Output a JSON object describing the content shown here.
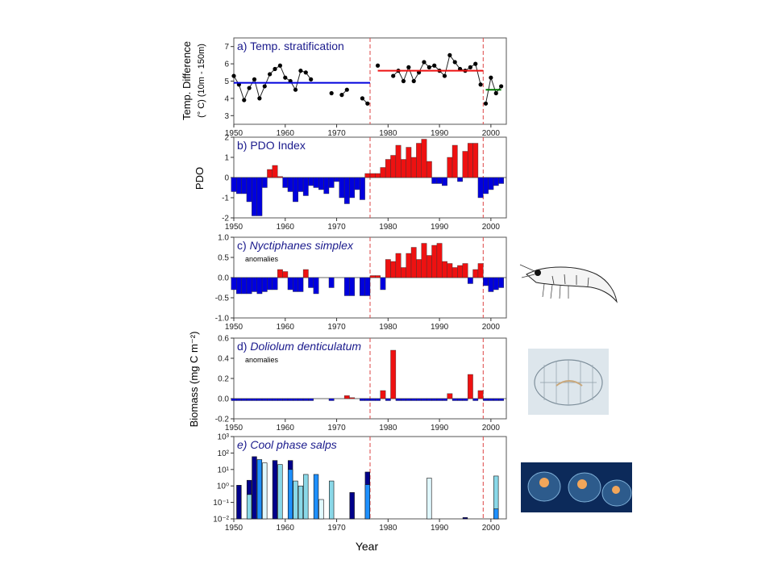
{
  "colors": {
    "blue": "#0000dd",
    "red": "#ee1111",
    "green": "#007700",
    "regime_line": "#dd4444",
    "title_blue": "#1a1a8c",
    "salp_dark": "#00008b",
    "salp_mid": "#1e90ff",
    "salp_light": "#8ad8e8",
    "salp_pale": "#e0f8ff"
  },
  "regime_shifts": [
    1976.5,
    1998.5
  ],
  "xlabel": "Year",
  "chart_data": [
    {
      "id": "a",
      "type": "line",
      "title": "a) Temp. stratification",
      "ylabel_lines": [
        "Temp. Difference",
        "(° C)  (10m - 150m)"
      ],
      "ylim": [
        2.5,
        7.5
      ],
      "yticks": [
        "3",
        "4",
        "5",
        "6",
        "7"
      ],
      "xticks": [
        "1950",
        "1960",
        "1970",
        "1980",
        "1990",
        "2000"
      ],
      "xlim": [
        1950,
        2003
      ],
      "series": [
        {
          "x": [
            1950,
            1951,
            1952,
            1953,
            1954,
            1955,
            1956,
            1957,
            1958,
            1959,
            1960,
            1961,
            1962,
            1963,
            1964,
            1965,
            1969,
            1971,
            1972,
            1975,
            1976,
            1978,
            1981,
            1982,
            1983,
            1984,
            1985,
            1986,
            1987,
            1988,
            1989,
            1990,
            1991,
            1992,
            1993,
            1994,
            1995,
            1996,
            1997,
            1998,
            1999,
            2000,
            2001,
            2002
          ],
          "y": [
            5.3,
            4.8,
            3.9,
            4.6,
            5.1,
            4.0,
            4.7,
            5.4,
            5.7,
            5.9,
            5.2,
            5.0,
            4.5,
            5.6,
            5.5,
            5.1,
            4.3,
            4.2,
            4.5,
            4.0,
            3.7,
            5.9,
            5.3,
            5.6,
            5.0,
            5.8,
            5.0,
            5.5,
            6.1,
            5.8,
            5.9,
            5.6,
            5.3,
            6.5,
            6.1,
            5.7,
            5.6,
            5.8,
            6.0,
            4.8,
            3.7,
            5.2,
            4.3,
            4.7
          ],
          "segments_break_after": [
            1965,
            1969,
            1972,
            1976,
            1978,
            1998
          ]
        }
      ],
      "means": [
        {
          "x": [
            1950,
            1976.5
          ],
          "y": 4.9,
          "color_key": "blue"
        },
        {
          "x": [
            1978,
            1998.5
          ],
          "y": 5.6,
          "color_key": "red"
        },
        {
          "x": [
            1999,
            2002
          ],
          "y": 4.5,
          "color_key": "green"
        }
      ]
    },
    {
      "id": "b",
      "type": "bar",
      "title": "b) PDO Index",
      "ylabel": "PDO",
      "ylim": [
        -2,
        2
      ],
      "yticks": [
        "-2",
        "-1",
        "0",
        "1",
        "2"
      ],
      "xticks": [
        "1950",
        "1960",
        "1970",
        "1980",
        "1990",
        "2000"
      ],
      "xlim": [
        1950,
        2003
      ],
      "x": [
        1950,
        1951,
        1952,
        1953,
        1954,
        1955,
        1956,
        1957,
        1958,
        1959,
        1960,
        1961,
        1962,
        1963,
        1964,
        1965,
        1966,
        1967,
        1968,
        1969,
        1970,
        1971,
        1972,
        1973,
        1974,
        1975,
        1976,
        1977,
        1978,
        1979,
        1980,
        1981,
        1982,
        1983,
        1984,
        1985,
        1986,
        1987,
        1988,
        1989,
        1990,
        1991,
        1992,
        1993,
        1994,
        1995,
        1996,
        1997,
        1998,
        1999,
        2000,
        2001,
        2002
      ],
      "values": [
        -0.7,
        -0.8,
        -0.8,
        -1.2,
        -1.9,
        -1.9,
        -0.5,
        0.4,
        0.6,
        0.05,
        -0.5,
        -0.7,
        -1.2,
        -0.7,
        -0.9,
        -0.4,
        -0.5,
        -0.6,
        -0.8,
        -0.5,
        -0.2,
        -1.0,
        -1.3,
        -1.0,
        -0.6,
        -1.1,
        0.2,
        0.2,
        0.2,
        0.5,
        0.9,
        1.1,
        1.6,
        0.9,
        1.5,
        1.0,
        1.7,
        1.9,
        0.8,
        -0.3,
        -0.3,
        -0.4,
        1.0,
        1.6,
        -0.2,
        1.3,
        1.7,
        1.7,
        -1.0,
        -0.8,
        -0.6,
        -0.4,
        -0.3
      ]
    },
    {
      "id": "c",
      "type": "bar",
      "title": "c) Nyctiphanes simplex",
      "subtitle": "anomalies",
      "ylim": [
        -1,
        1
      ],
      "yticks": [
        "-1.0",
        "-0.5",
        "0.0",
        "0.5",
        "1.0"
      ],
      "xticks": [
        "1950",
        "1960",
        "1970",
        "1980",
        "1990",
        "2000"
      ],
      "xlim": [
        1950,
        2003
      ],
      "x": [
        1950,
        1951,
        1952,
        1953,
        1954,
        1955,
        1956,
        1957,
        1958,
        1959,
        1960,
        1961,
        1962,
        1963,
        1964,
        1965,
        1966,
        1969,
        1972,
        1973,
        1975,
        1976,
        1977,
        1978,
        1979,
        1980,
        1981,
        1982,
        1983,
        1984,
        1985,
        1986,
        1987,
        1988,
        1989,
        1990,
        1991,
        1992,
        1993,
        1994,
        1995,
        1996,
        1997,
        1998,
        1999,
        2000,
        2001,
        2002
      ],
      "values": [
        -0.3,
        -0.4,
        -0.4,
        -0.4,
        -0.35,
        -0.4,
        -0.35,
        -0.3,
        -0.3,
        0.2,
        0.15,
        -0.3,
        -0.35,
        -0.35,
        0.2,
        -0.25,
        -0.4,
        -0.25,
        -0.45,
        -0.45,
        -0.45,
        -0.45,
        0.05,
        0.05,
        -0.3,
        0.45,
        0.4,
        0.6,
        0.25,
        0.6,
        0.75,
        0.45,
        0.85,
        0.55,
        0.8,
        0.85,
        0.4,
        0.35,
        0.25,
        0.3,
        0.35,
        -0.15,
        0.2,
        0.35,
        -0.2,
        -0.35,
        -0.3,
        -0.25
      ]
    },
    {
      "id": "d",
      "type": "bar",
      "title": "d) Doliolum denticulatum",
      "subtitle": "anomalies",
      "ylabel": "Biomass  (mg C m⁻²)",
      "ylim": [
        -0.2,
        0.6
      ],
      "yticks": [
        "-0.2",
        "0.0",
        "0.2",
        "0.4",
        "0.6"
      ],
      "xticks": [
        "1950",
        "1960",
        "1970",
        "1980",
        "1990",
        "2000"
      ],
      "xlim": [
        1950,
        2003
      ],
      "x": [
        1950,
        1951,
        1952,
        1953,
        1954,
        1955,
        1956,
        1957,
        1958,
        1959,
        1960,
        1961,
        1962,
        1963,
        1964,
        1965,
        1969,
        1972,
        1973,
        1975,
        1976,
        1977,
        1978,
        1979,
        1980,
        1981,
        1982,
        1983,
        1984,
        1985,
        1986,
        1987,
        1988,
        1989,
        1990,
        1991,
        1992,
        1993,
        1994,
        1995,
        1996,
        1997,
        1998,
        1999,
        2000,
        2001,
        2002
      ],
      "values": [
        -0.02,
        -0.02,
        -0.02,
        -0.02,
        -0.02,
        -0.02,
        -0.02,
        -0.02,
        -0.02,
        -0.02,
        -0.02,
        -0.02,
        -0.02,
        -0.02,
        -0.02,
        -0.02,
        -0.02,
        0.03,
        0.01,
        -0.02,
        -0.02,
        -0.02,
        -0.02,
        0.08,
        -0.02,
        0.48,
        -0.02,
        -0.02,
        -0.02,
        -0.02,
        -0.02,
        -0.02,
        -0.02,
        -0.02,
        -0.02,
        -0.02,
        0.05,
        -0.02,
        -0.02,
        -0.02,
        0.24,
        -0.02,
        0.08,
        -0.02,
        -0.02,
        -0.02,
        -0.02
      ]
    },
    {
      "id": "e",
      "type": "bar",
      "title": "e) Cool phase salps",
      "scale": "log",
      "ylim": [
        0.01,
        1000
      ],
      "yticks": [
        "10³",
        "10²",
        "10¹",
        "10⁰",
        "10⁻¹",
        "10⁻²"
      ],
      "xticks": [
        "1950",
        "1960",
        "1970",
        "1980",
        "1990",
        "2000"
      ],
      "xlim": [
        1950,
        2003
      ],
      "bars": [
        {
          "x": 1951,
          "y": 1.1,
          "color_key": "salp_dark"
        },
        {
          "x": 1953,
          "y": 2.2,
          "color_key": "salp_dark"
        },
        {
          "x": 1953,
          "y": 0.3,
          "color_key": "salp_light"
        },
        {
          "x": 1954,
          "y": 60,
          "color_key": "salp_dark"
        },
        {
          "x": 1955,
          "y": 40,
          "color_key": "salp_mid"
        },
        {
          "x": 1956,
          "y": 25,
          "color_key": "salp_pale"
        },
        {
          "x": 1958,
          "y": 35,
          "color_key": "salp_dark"
        },
        {
          "x": 1959,
          "y": 20,
          "color_key": "salp_light"
        },
        {
          "x": 1961,
          "y": 35,
          "color_key": "salp_dark"
        },
        {
          "x": 1961,
          "y": 10,
          "color_key": "salp_mid"
        },
        {
          "x": 1962,
          "y": 2.0,
          "color_key": "salp_light"
        },
        {
          "x": 1963,
          "y": 1.0,
          "color_key": "salp_light"
        },
        {
          "x": 1964,
          "y": 5.0,
          "color_key": "salp_light"
        },
        {
          "x": 1966,
          "y": 5.0,
          "color_key": "salp_mid"
        },
        {
          "x": 1967,
          "y": 0.15,
          "color_key": "salp_pale"
        },
        {
          "x": 1969,
          "y": 2.0,
          "color_key": "salp_light"
        },
        {
          "x": 1973,
          "y": 0.4,
          "color_key": "salp_dark"
        },
        {
          "x": 1976,
          "y": 7.0,
          "color_key": "salp_dark"
        },
        {
          "x": 1976,
          "y": 1.2,
          "color_key": "salp_mid"
        },
        {
          "x": 1988,
          "y": 3.0,
          "color_key": "salp_pale"
        },
        {
          "x": 1995,
          "y": 0.012,
          "color_key": "salp_dark"
        },
        {
          "x": 2001,
          "y": 4.0,
          "color_key": "salp_light"
        },
        {
          "x": 2001,
          "y": 0.04,
          "color_key": "salp_mid"
        }
      ]
    }
  ]
}
